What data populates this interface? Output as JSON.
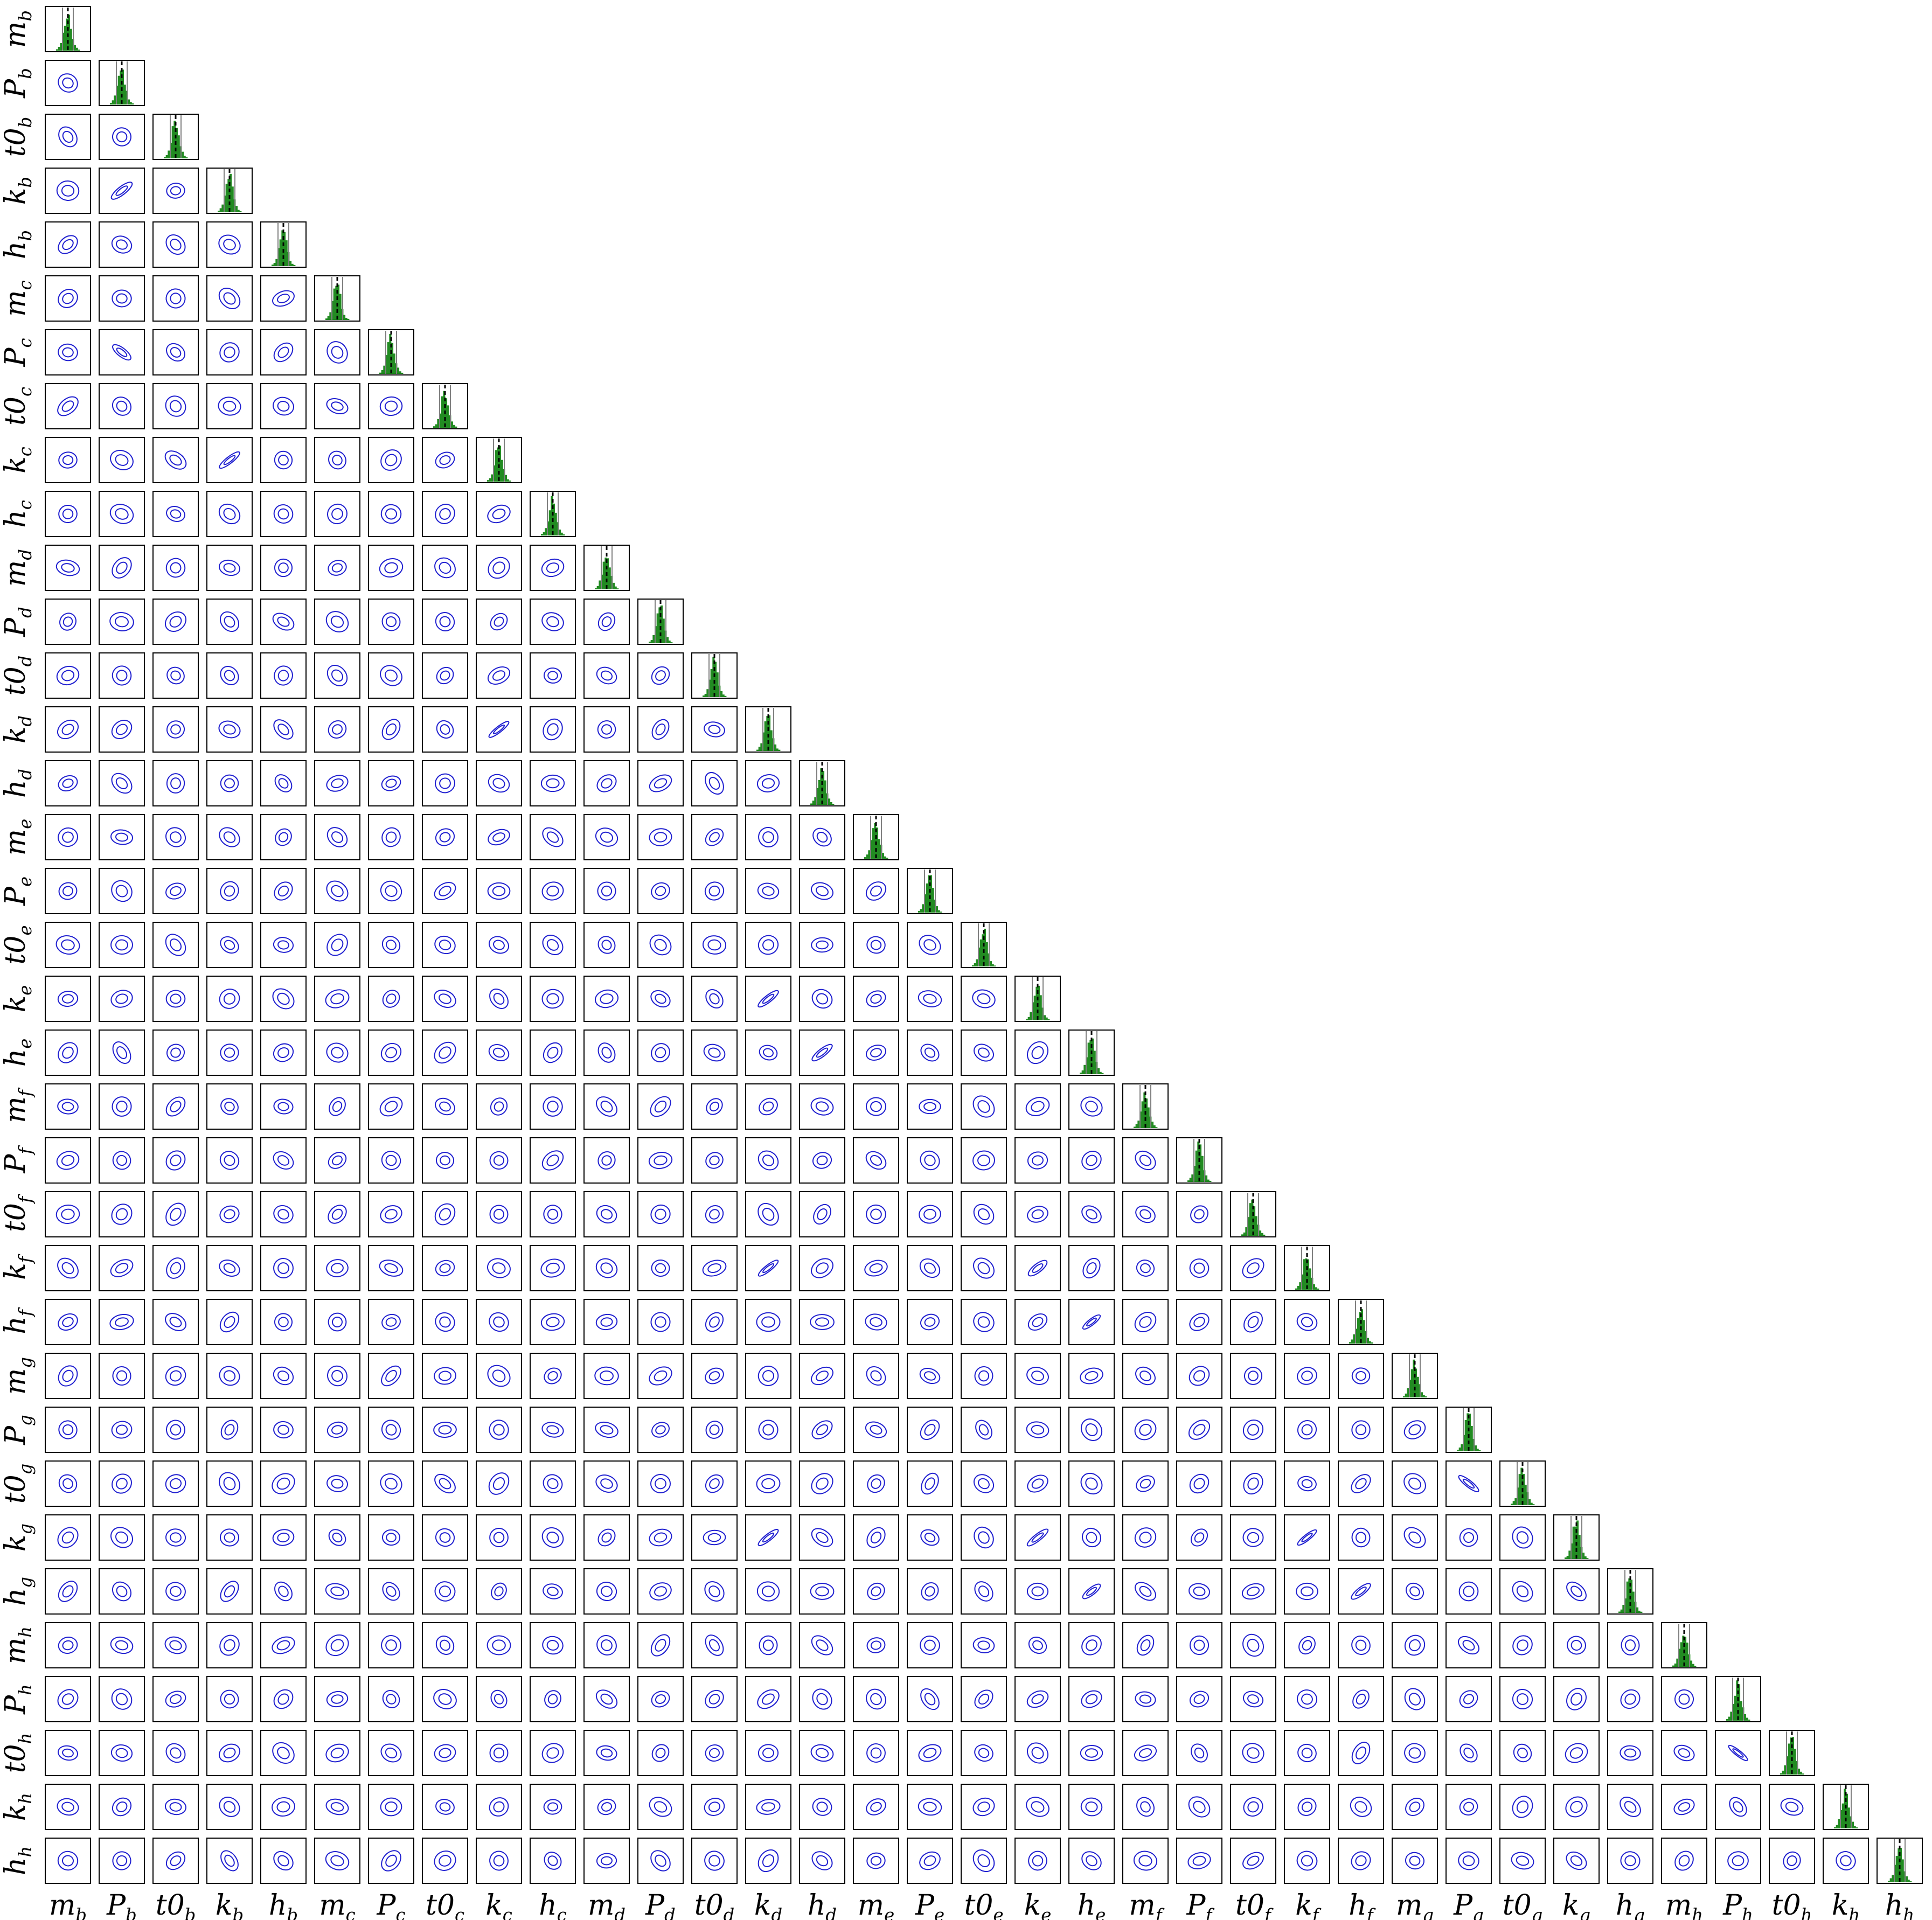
{
  "chart_data": {
    "type": "corner",
    "description_text": "",
    "parameters": [
      {
        "label": "m",
        "sub": "b"
      },
      {
        "label": "P",
        "sub": "b"
      },
      {
        "label": "t0",
        "sub": "b"
      },
      {
        "label": "k",
        "sub": "b"
      },
      {
        "label": "h",
        "sub": "b"
      },
      {
        "label": "m",
        "sub": "c"
      },
      {
        "label": "P",
        "sub": "c"
      },
      {
        "label": "t0",
        "sub": "c"
      },
      {
        "label": "k",
        "sub": "c"
      },
      {
        "label": "h",
        "sub": "c"
      },
      {
        "label": "m",
        "sub": "d"
      },
      {
        "label": "P",
        "sub": "d"
      },
      {
        "label": "t0",
        "sub": "d"
      },
      {
        "label": "k",
        "sub": "d"
      },
      {
        "label": "h",
        "sub": "d"
      },
      {
        "label": "m",
        "sub": "e"
      },
      {
        "label": "P",
        "sub": "e"
      },
      {
        "label": "t0",
        "sub": "e"
      },
      {
        "label": "k",
        "sub": "e"
      },
      {
        "label": "h",
        "sub": "e"
      },
      {
        "label": "m",
        "sub": "f"
      },
      {
        "label": "P",
        "sub": "f"
      },
      {
        "label": "t0",
        "sub": "f"
      },
      {
        "label": "k",
        "sub": "f"
      },
      {
        "label": "h",
        "sub": "f"
      },
      {
        "label": "m",
        "sub": "g"
      },
      {
        "label": "P",
        "sub": "g"
      },
      {
        "label": "t0",
        "sub": "g"
      },
      {
        "label": "k",
        "sub": "g"
      },
      {
        "label": "h",
        "sub": "g"
      },
      {
        "label": "m",
        "sub": "h"
      },
      {
        "label": "P",
        "sub": "h"
      },
      {
        "label": "t0",
        "sub": "h"
      },
      {
        "label": "k",
        "sub": "h"
      },
      {
        "label": "h",
        "sub": "h"
      }
    ],
    "diagonal": {
      "kind": "histogram",
      "bar_color": "#228B22",
      "median_line_color": "#000000",
      "median_line_style": "dashed",
      "quantile_line_color": "#808080",
      "shape": [
        0.04,
        0.1,
        0.22,
        0.45,
        0.78,
        1.0,
        0.92,
        0.62,
        0.34,
        0.16,
        0.07,
        0.03
      ]
    },
    "off_diagonal": {
      "kind": "contour",
      "contour_color": "#1f1fd0",
      "levels": 2
    },
    "strong_correlations": [
      {
        "pair": [
          "P_b",
          "k_b"
        ],
        "sign": "positive"
      },
      {
        "pair": [
          "P_b",
          "P_c"
        ],
        "sign": "negative"
      },
      {
        "pair": [
          "k_b",
          "k_c"
        ],
        "sign": "positive"
      },
      {
        "pair": [
          "k_c",
          "k_d"
        ],
        "sign": "positive"
      },
      {
        "pair": [
          "k_d",
          "k_e"
        ],
        "sign": "positive"
      },
      {
        "pair": [
          "h_d",
          "h_e"
        ],
        "sign": "positive"
      },
      {
        "pair": [
          "k_d",
          "k_f"
        ],
        "sign": "positive"
      },
      {
        "pair": [
          "k_e",
          "k_f"
        ],
        "sign": "positive"
      },
      {
        "pair": [
          "h_e",
          "h_f"
        ],
        "sign": "positive"
      },
      {
        "pair": [
          "k_d",
          "k_g"
        ],
        "sign": "positive"
      },
      {
        "pair": [
          "k_e",
          "k_g"
        ],
        "sign": "positive"
      },
      {
        "pair": [
          "k_f",
          "k_g"
        ],
        "sign": "positive"
      },
      {
        "pair": [
          "h_e",
          "h_g"
        ],
        "sign": "positive"
      },
      {
        "pair": [
          "h_f",
          "h_g"
        ],
        "sign": "positive"
      },
      {
        "pair": [
          "P_g",
          "t0_g"
        ],
        "sign": "negative"
      },
      {
        "pair": [
          "P_h",
          "t0_h"
        ],
        "sign": "negative"
      }
    ],
    "grid": false,
    "legend": "none"
  }
}
